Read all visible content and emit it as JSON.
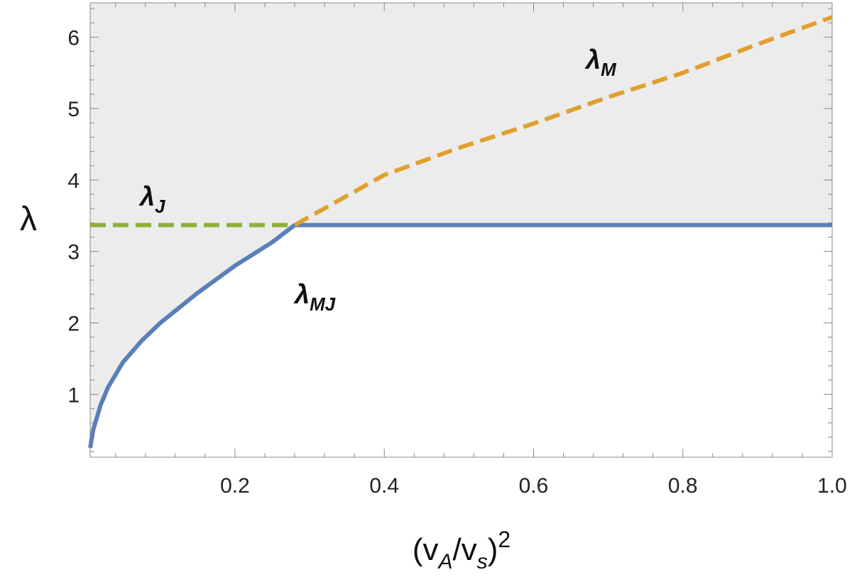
{
  "chart_data": {
    "type": "line",
    "xlabel": [
      "(v",
      "A",
      "/v",
      "s",
      ")",
      "2"
    ],
    "ylabel": "λ",
    "xlim": [
      0.006,
      1
    ],
    "ylim": [
      0.12,
      6.48
    ],
    "xticks": [
      0.2,
      0.4,
      0.6,
      0.8,
      {
        "value": 1,
        "label": "1.0"
      }
    ],
    "yticks": [
      1,
      2,
      3,
      4,
      5,
      6
    ],
    "minor_xticks": [
      0.04,
      0.08,
      0.12,
      0.16,
      0.24,
      0.28,
      0.32,
      0.36,
      0.44,
      0.48,
      0.52,
      0.56,
      0.64,
      0.68,
      0.72,
      0.76,
      0.84,
      0.88,
      0.92,
      0.96
    ],
    "minor_yticks": [
      0.2,
      0.4,
      0.6,
      0.8,
      1.2,
      1.4,
      1.6,
      1.8,
      2.2,
      2.4,
      2.6,
      2.8,
      3.2,
      3.4,
      3.6,
      3.8,
      4.2,
      4.4,
      4.6,
      4.8,
      5.2,
      5.4,
      5.6,
      5.8,
      6.2,
      6.4
    ],
    "shade_color": "#ececec",
    "series": [
      {
        "name": "λ",
        "subscript": "MJ",
        "color": "#5b7fb8",
        "dashed": false,
        "shade_above": true,
        "x": [
          0.006,
          0.01,
          0.02,
          0.03,
          0.05,
          0.075,
          0.1,
          0.15,
          0.2,
          0.25,
          0.28,
          0.4,
          0.6,
          0.8,
          1.0
        ],
        "values": [
          0.25,
          0.5,
          0.85,
          1.1,
          1.45,
          1.75,
          2.0,
          2.42,
          2.8,
          3.13,
          3.37,
          3.37,
          3.37,
          3.37,
          3.37
        ]
      },
      {
        "name": "λ",
        "subscript": "J",
        "color": "#8fb038",
        "dashed": true,
        "shade_above": false,
        "x": [
          0.006,
          0.28
        ],
        "values": [
          3.37,
          3.37
        ]
      },
      {
        "name": "λ",
        "subscript": "M",
        "color": "#e0a030",
        "dashed": true,
        "shade_above": false,
        "x": [
          0.28,
          0.4,
          0.5,
          0.6,
          0.7,
          0.8,
          0.9,
          1.0
        ],
        "values": [
          3.37,
          4.07,
          4.45,
          4.79,
          5.16,
          5.5,
          5.9,
          6.28
        ]
      }
    ]
  }
}
